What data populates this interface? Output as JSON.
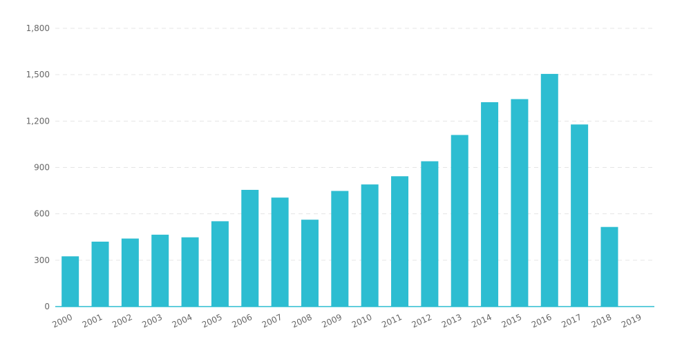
{
  "chart_data": {
    "type": "bar",
    "title": "",
    "xlabel": "",
    "ylabel": "",
    "categories": [
      "2000",
      "2001",
      "2002",
      "2003",
      "2004",
      "2005",
      "2006",
      "2007",
      "2008",
      "2009",
      "2010",
      "2011",
      "2012",
      "2013",
      "2014",
      "2015",
      "2016",
      "2017",
      "2018",
      "2019"
    ],
    "values": [
      325,
      420,
      440,
      465,
      448,
      552,
      755,
      705,
      562,
      748,
      790,
      843,
      940,
      1110,
      1322,
      1342,
      1505,
      1178,
      515,
      0
    ],
    "y_ticks": [
      0,
      300,
      600,
      900,
      1200,
      1500,
      1800
    ],
    "y_tick_labels": [
      "0",
      "300",
      "600",
      "900",
      "1,200",
      "1,500",
      "1,800"
    ],
    "ylim": [
      0,
      1800
    ],
    "grid": "horizontal-dashed",
    "legend": "none",
    "bar_color": "#2dbdd1",
    "axis_color": "#2dbdd1",
    "grid_color": "#e5e5e5",
    "label_color": "#666666"
  }
}
